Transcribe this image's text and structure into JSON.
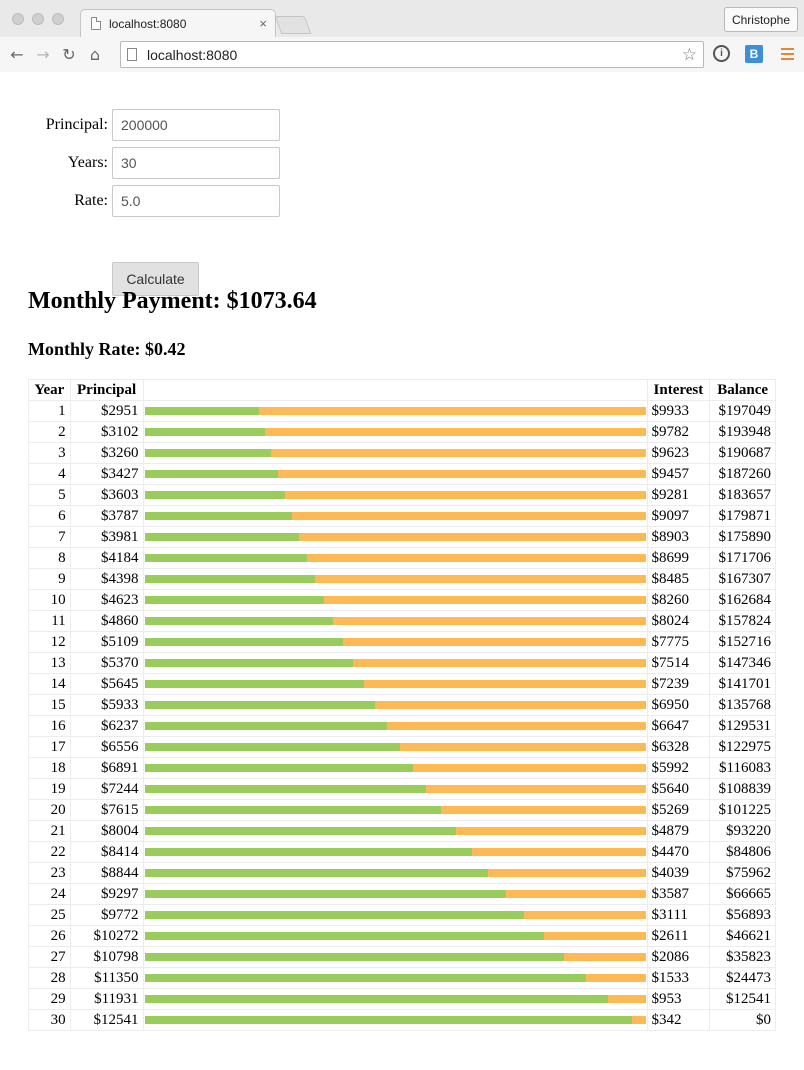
{
  "browser": {
    "tab_title": "localhost:8080",
    "close_glyph": "×",
    "profile_name": "Christophe",
    "url": "localhost:8080",
    "icons": [
      "back-arrow-icon",
      "forward-arrow-icon",
      "reload-icon",
      "home-icon",
      "page-icon",
      "star-icon",
      "info-icon",
      "bookmark-extension-icon",
      "menu-icon"
    ]
  },
  "form": {
    "principal_label": "Principal:",
    "principal_value": "200000",
    "years_label": "Years:",
    "years_value": "30",
    "rate_label": "Rate:",
    "rate_value": "5.0",
    "calculate_label": "Calculate"
  },
  "results": {
    "monthly_payment": "Monthly Payment: $1073.64",
    "monthly_rate": "Monthly Rate: $0.42"
  },
  "table": {
    "headers": [
      "Year",
      "Principal",
      "",
      "Interest",
      "Balance"
    ],
    "colors": {
      "principal": "#99cc5d",
      "interest": "#fcb954"
    },
    "rows": [
      {
        "year": "1",
        "principal": "$2951",
        "interest": "$9933",
        "balance": "$197049",
        "principal_share": 0.229
      },
      {
        "year": "2",
        "principal": "$3102",
        "interest": "$9782",
        "balance": "$193948",
        "principal_share": 0.241
      },
      {
        "year": "3",
        "principal": "$3260",
        "interest": "$9623",
        "balance": "$190687",
        "principal_share": 0.253
      },
      {
        "year": "4",
        "principal": "$3427",
        "interest": "$9457",
        "balance": "$187260",
        "principal_share": 0.266
      },
      {
        "year": "5",
        "principal": "$3603",
        "interest": "$9281",
        "balance": "$183657",
        "principal_share": 0.28
      },
      {
        "year": "6",
        "principal": "$3787",
        "interest": "$9097",
        "balance": "$179871",
        "principal_share": 0.294
      },
      {
        "year": "7",
        "principal": "$3981",
        "interest": "$8903",
        "balance": "$175890",
        "principal_share": 0.309
      },
      {
        "year": "8",
        "principal": "$4184",
        "interest": "$8699",
        "balance": "$171706",
        "principal_share": 0.325
      },
      {
        "year": "9",
        "principal": "$4398",
        "interest": "$8485",
        "balance": "$167307",
        "principal_share": 0.341
      },
      {
        "year": "10",
        "principal": "$4623",
        "interest": "$8260",
        "balance": "$162684",
        "principal_share": 0.359
      },
      {
        "year": "11",
        "principal": "$4860",
        "interest": "$8024",
        "balance": "$157824",
        "principal_share": 0.377
      },
      {
        "year": "12",
        "principal": "$5109",
        "interest": "$7775",
        "balance": "$152716",
        "principal_share": 0.397
      },
      {
        "year": "13",
        "principal": "$5370",
        "interest": "$7514",
        "balance": "$147346",
        "principal_share": 0.417
      },
      {
        "year": "14",
        "principal": "$5645",
        "interest": "$7239",
        "balance": "$141701",
        "principal_share": 0.438
      },
      {
        "year": "15",
        "principal": "$5933",
        "interest": "$6950",
        "balance": "$135768",
        "principal_share": 0.461
      },
      {
        "year": "16",
        "principal": "$6237",
        "interest": "$6647",
        "balance": "$129531",
        "principal_share": 0.484
      },
      {
        "year": "17",
        "principal": "$6556",
        "interest": "$6328",
        "balance": "$122975",
        "principal_share": 0.509
      },
      {
        "year": "18",
        "principal": "$6891",
        "interest": "$5992",
        "balance": "$116083",
        "principal_share": 0.535
      },
      {
        "year": "19",
        "principal": "$7244",
        "interest": "$5640",
        "balance": "$108839",
        "principal_share": 0.562
      },
      {
        "year": "20",
        "principal": "$7615",
        "interest": "$5269",
        "balance": "$101225",
        "principal_share": 0.591
      },
      {
        "year": "21",
        "principal": "$8004",
        "interest": "$4879",
        "balance": "$93220",
        "principal_share": 0.621
      },
      {
        "year": "22",
        "principal": "$8414",
        "interest": "$4470",
        "balance": "$84806",
        "principal_share": 0.653
      },
      {
        "year": "23",
        "principal": "$8844",
        "interest": "$4039",
        "balance": "$75962",
        "principal_share": 0.686
      },
      {
        "year": "24",
        "principal": "$9297",
        "interest": "$3587",
        "balance": "$66665",
        "principal_share": 0.722
      },
      {
        "year": "25",
        "principal": "$9772",
        "interest": "$3111",
        "balance": "$56893",
        "principal_share": 0.758
      },
      {
        "year": "26",
        "principal": "$10272",
        "interest": "$2611",
        "balance": "$46621",
        "principal_share": 0.797
      },
      {
        "year": "27",
        "principal": "$10798",
        "interest": "$2086",
        "balance": "$35823",
        "principal_share": 0.838
      },
      {
        "year": "28",
        "principal": "$11350",
        "interest": "$1533",
        "balance": "$24473",
        "principal_share": 0.881
      },
      {
        "year": "29",
        "principal": "$11931",
        "interest": "$953",
        "balance": "$12541",
        "principal_share": 0.926
      },
      {
        "year": "30",
        "principal": "$12541",
        "interest": "$342",
        "balance": "$0",
        "principal_share": 0.973
      }
    ]
  }
}
